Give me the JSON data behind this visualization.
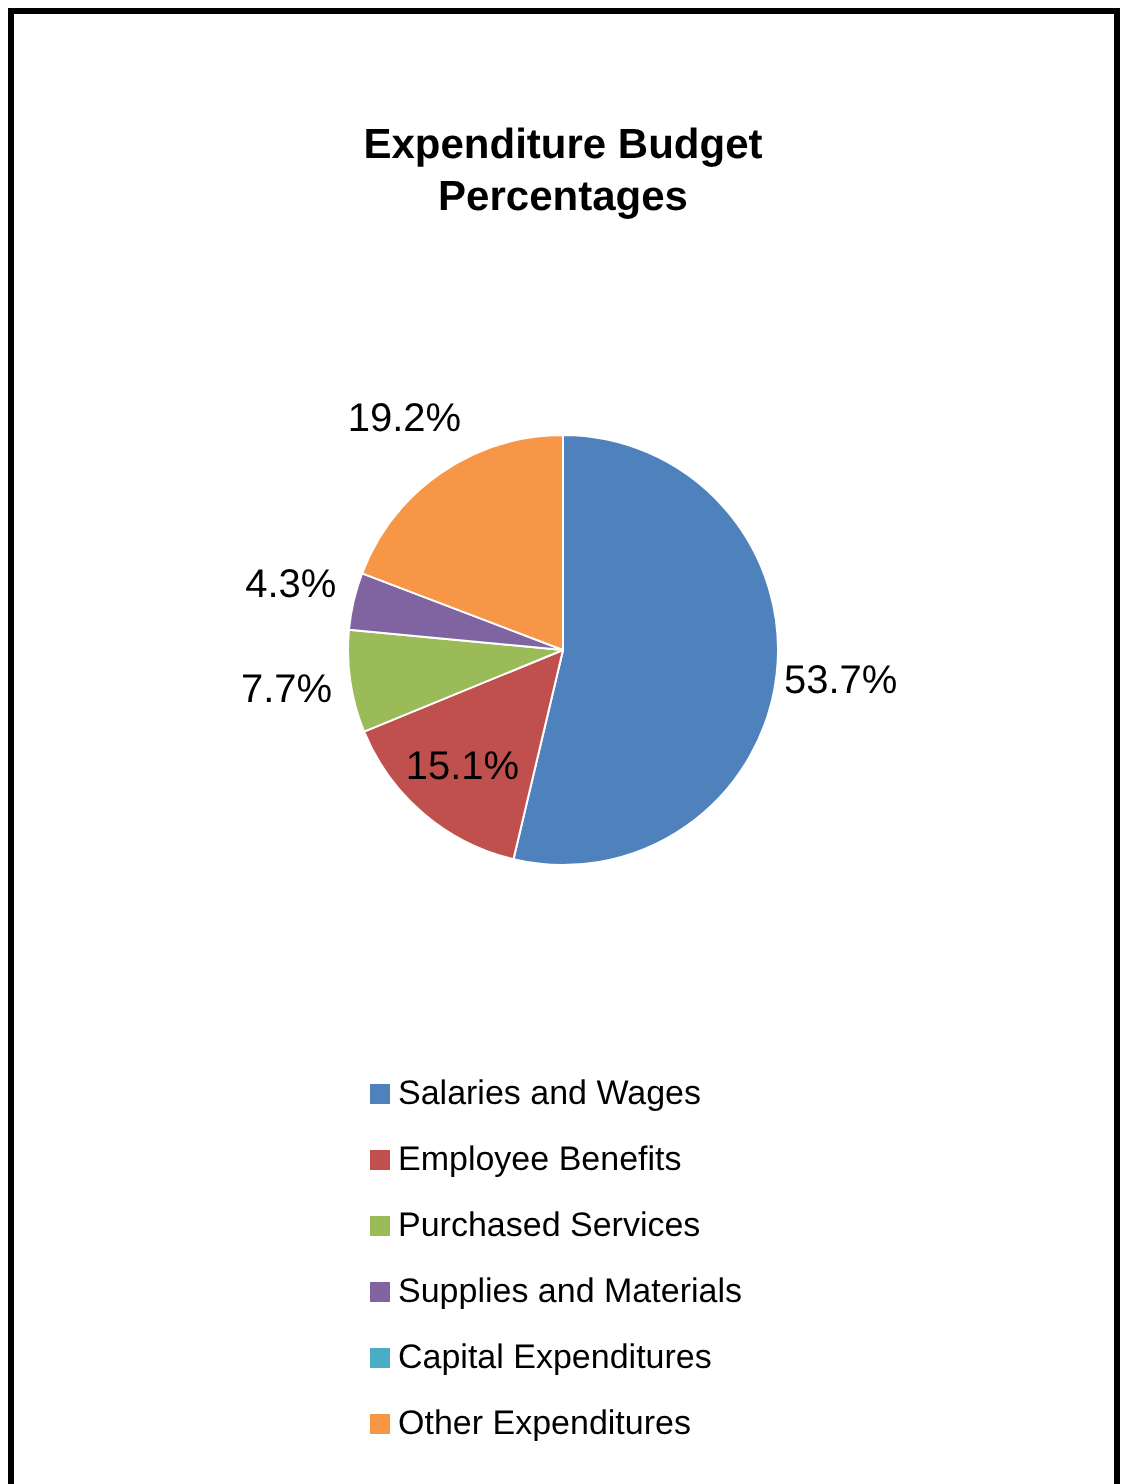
{
  "chart_data": {
    "type": "pie",
    "title": "Expenditure Budget Percentages",
    "categories": [
      "Salaries and Wages",
      "Employee Benefits",
      "Purchased Services",
      "Supplies and Materials",
      "Capital Expenditures",
      "Other Expenditures"
    ],
    "values": [
      53.7,
      15.1,
      7.7,
      4.3,
      0,
      19.2
    ],
    "colors": [
      "#4f81bd",
      "#c0504d",
      "#9bbb59",
      "#8064a2",
      "#4bacc6",
      "#f79646"
    ],
    "value_labels": [
      "53.7%",
      "15.1%",
      "7.7%",
      "4.3%",
      null,
      "19.2%"
    ],
    "legend": "bottom"
  }
}
